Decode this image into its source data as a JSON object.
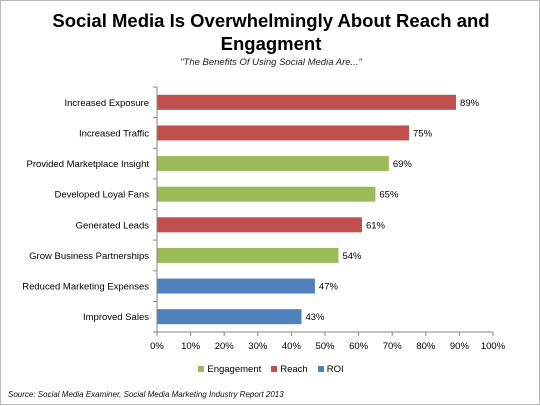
{
  "chart_data": {
    "type": "bar",
    "orientation": "horizontal",
    "title": "Social Media Is Overwhelmingly About Reach and Engagment",
    "subtitle": "\"The Benefits Of Using Social Media Are...\"",
    "categories": [
      "Increased Exposure",
      "Increased Traffic",
      "Provided Marketplace Insight",
      "Developed Loyal Fans",
      "Generated Leads",
      "Grow Business Partnerships",
      "Reduced Marketing Expenses",
      "Improved Sales"
    ],
    "values": [
      89,
      75,
      69,
      65,
      61,
      54,
      47,
      43
    ],
    "value_labels": [
      "89%",
      "75%",
      "69%",
      "65%",
      "61%",
      "54%",
      "47%",
      "43%"
    ],
    "bar_groups": [
      "Reach",
      "Reach",
      "Engagement",
      "Engagement",
      "Reach",
      "Engagement",
      "ROI",
      "ROI"
    ],
    "xlim": [
      0,
      100
    ],
    "xticks": [
      0,
      10,
      20,
      30,
      40,
      50,
      60,
      70,
      80,
      90,
      100
    ],
    "xtick_labels": [
      "0%",
      "10%",
      "20%",
      "30%",
      "40%",
      "50%",
      "60%",
      "70%",
      "80%",
      "90%",
      "100%"
    ],
    "xlabel": "",
    "ylabel": "",
    "grid": false,
    "legend_position": "bottom",
    "legend": [
      {
        "name": "Engagement",
        "color": "#9bbb59"
      },
      {
        "name": "Reach",
        "color": "#c0504d"
      },
      {
        "name": "ROI",
        "color": "#4f81bd"
      }
    ],
    "source": "Source: Social Media Examiner, Social Media Marketing Industry Report 2013"
  }
}
